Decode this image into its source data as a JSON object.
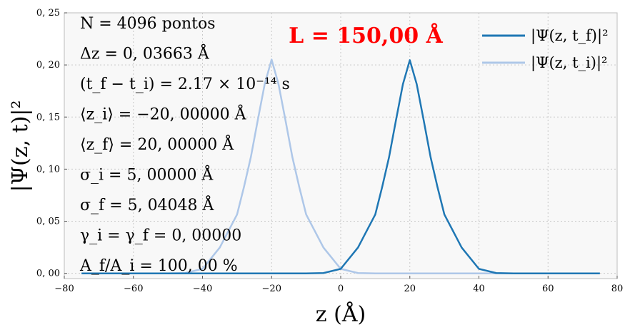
{
  "chart_data": {
    "type": "line",
    "xlabel": "z (Å)",
    "ylabel": "|Ψ(z, t)|²",
    "xlim": [
      -80,
      80
    ],
    "ylim": [
      -0.005,
      0.25
    ],
    "grid": true,
    "legend_position": "top-right",
    "title": "L = 150,00 Å",
    "title_color": "#ff0000",
    "x_ticks": [
      -80,
      -60,
      -40,
      -20,
      0,
      20,
      40,
      60,
      80
    ],
    "x_tick_labels": [
      "−80",
      "−60",
      "−40",
      "−20",
      "0",
      "20",
      "40",
      "60",
      "80"
    ],
    "y_ticks": [
      0.0,
      0.05,
      0.1,
      0.15,
      0.2,
      0.25
    ],
    "y_tick_labels": [
      "0, 00",
      "0, 05",
      "0, 10",
      "0, 15",
      "0, 20",
      "0, 25"
    ],
    "annotations": [
      "N = 4096 pontos",
      "Δz = 0, 03663 Å",
      "(t_f − t_i) = 2.17 × 10⁻¹⁴ s",
      "⟨z_i⟩ = −20, 00000 Å",
      "⟨z_f⟩ = 20, 00000 Å",
      "σ_i = 5, 00000 Å",
      "σ_f = 5, 04048 Å",
      "γ_i = γ_f = 0, 00000",
      "A_f/A_i = 100, 00 %"
    ],
    "series": [
      {
        "name": "|Ψ(z, t_f)|²",
        "color": "#1f77b4",
        "x": [
          -75,
          -60,
          -50,
          -40,
          -35,
          -30,
          -25,
          -20,
          -15,
          -10,
          -5,
          0,
          5,
          10,
          12,
          14,
          16,
          18,
          20,
          22,
          24,
          26,
          28,
          30,
          35,
          40,
          45,
          50,
          60,
          75
        ],
        "y": [
          0,
          0,
          0,
          0,
          0,
          0,
          0,
          0,
          0,
          0,
          0.0003,
          0.0043,
          0.0248,
          0.0565,
          0.0829,
          0.1117,
          0.1471,
          0.1815,
          0.2046,
          0.1815,
          0.1471,
          0.1117,
          0.0829,
          0.0565,
          0.0248,
          0.0043,
          0.0003,
          0,
          0,
          0
        ]
      },
      {
        "name": "|Ψ(z, t_i)|²",
        "color": "#aec7e8",
        "x": [
          -75,
          -60,
          -50,
          -45,
          -40,
          -35,
          -30,
          -28,
          -26,
          -24,
          -22,
          -20,
          -18,
          -16,
          -14,
          -12,
          -10,
          -5,
          0,
          5,
          10,
          20,
          40,
          60,
          75
        ],
        "y": [
          0,
          0,
          0,
          0.0003,
          0.0043,
          0.0248,
          0.0565,
          0.0829,
          0.1117,
          0.1471,
          0.1815,
          0.2052,
          0.1815,
          0.1471,
          0.1117,
          0.0829,
          0.0565,
          0.0248,
          0.0043,
          0.0003,
          0,
          0,
          0,
          0,
          0
        ]
      }
    ]
  }
}
